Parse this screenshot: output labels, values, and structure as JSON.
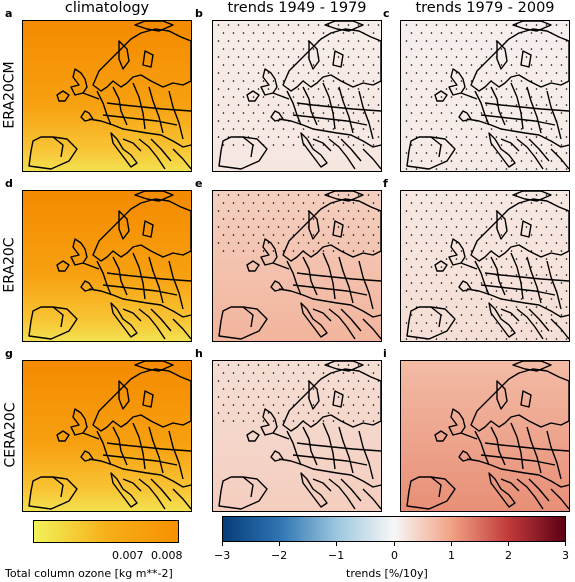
{
  "columns": [
    "climatology",
    "trends 1949 - 1979",
    "trends 1979 - 2009"
  ],
  "rows": [
    "ERA20CM",
    "ERA20C",
    "CERA20C"
  ],
  "panel_letters": [
    "a",
    "b",
    "c",
    "d",
    "e",
    "f",
    "g",
    "h",
    "i"
  ],
  "panels": [
    {
      "kind": "clim",
      "trend": null,
      "stipple": null
    },
    {
      "kind": "trend",
      "trend": 0.2,
      "stipple": "most"
    },
    {
      "kind": "trend",
      "trend": 0.15,
      "stipple": "all"
    },
    {
      "kind": "clim",
      "trend": null,
      "stipple": null
    },
    {
      "kind": "trend",
      "trend": 0.8,
      "stipple": "north"
    },
    {
      "kind": "trend",
      "trend": 0.3,
      "stipple": "all"
    },
    {
      "kind": "clim",
      "trend": null,
      "stipple": null
    },
    {
      "kind": "trend",
      "trend": 0.5,
      "stipple": "north"
    },
    {
      "kind": "trend",
      "trend": 1.2,
      "stipple": "none"
    }
  ],
  "colorbar_left": {
    "label": "Total column ozone [kg m**-2]",
    "ticks": [
      "0.007",
      "0.008"
    ],
    "colors": [
      "#f2f25a",
      "#f7b01a",
      "#f79000"
    ]
  },
  "colorbar_right": {
    "label": "trends [%/10y]",
    "ticks": [
      "−3",
      "−2",
      "−1",
      "0",
      "1",
      "2",
      "3"
    ],
    "range": [
      -3,
      3
    ],
    "colors": [
      "#063d7a",
      "#2f74b2",
      "#9cc7df",
      "#f7f7f7",
      "#f1a385",
      "#c23b3a",
      "#5c0016"
    ]
  }
}
